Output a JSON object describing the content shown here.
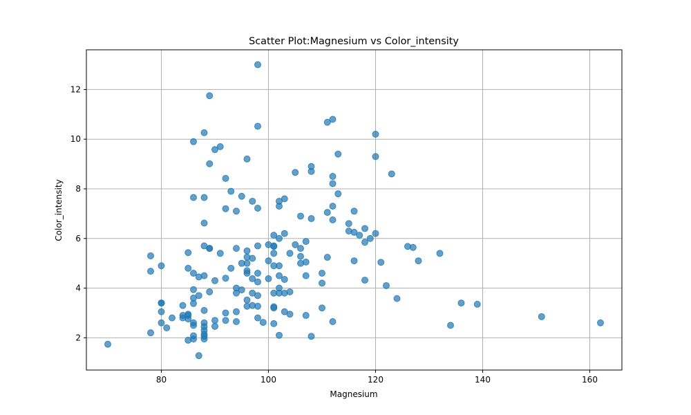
{
  "chart_data": {
    "type": "scatter",
    "title": "Scatter Plot:Magnesium vs Color_intensity",
    "xlabel": "Magnesium",
    "ylabel": "Color_intensity",
    "xlim": [
      66,
      166
    ],
    "ylim": [
      0.7,
      13.6
    ],
    "xticks": [
      80,
      100,
      120,
      140,
      160
    ],
    "yticks": [
      2,
      4,
      6,
      8,
      10,
      12
    ],
    "grid": true,
    "colors": {
      "marker": "#1f77b4",
      "grid": "#b0b0b0",
      "axis": "#000000"
    },
    "points": [
      [
        70,
        1.74
      ],
      [
        78,
        5.3
      ],
      [
        78,
        4.68
      ],
      [
        78,
        2.2
      ],
      [
        80,
        4.9
      ],
      [
        80,
        3.4
      ],
      [
        80,
        3.4
      ],
      [
        80,
        3.05
      ],
      [
        80,
        2.6
      ],
      [
        81,
        2.4
      ],
      [
        82,
        2.8
      ],
      [
        84,
        3.3
      ],
      [
        84,
        2.9
      ],
      [
        84,
        2.8
      ],
      [
        85,
        5.43
      ],
      [
        85,
        4.8
      ],
      [
        85,
        2.95
      ],
      [
        85,
        2.9
      ],
      [
        85,
        2.76
      ],
      [
        85,
        1.9
      ],
      [
        86,
        9.9
      ],
      [
        86,
        7.65
      ],
      [
        86,
        4.6
      ],
      [
        86,
        3.94
      ],
      [
        86,
        3.6
      ],
      [
        86,
        3.38
      ],
      [
        86,
        2.6
      ],
      [
        86,
        2.5
      ],
      [
        86,
        2.08
      ],
      [
        86,
        1.95
      ],
      [
        87,
        4.45
      ],
      [
        87,
        3.7
      ],
      [
        87,
        1.28
      ],
      [
        88,
        10.26
      ],
      [
        88,
        7.65
      ],
      [
        88,
        6.62
      ],
      [
        88,
        5.7
      ],
      [
        88,
        4.5
      ],
      [
        88,
        3.1
      ],
      [
        88,
        2.6
      ],
      [
        88,
        2.45
      ],
      [
        88,
        2.3
      ],
      [
        88,
        2.15
      ],
      [
        88,
        2.06
      ],
      [
        88,
        1.95
      ],
      [
        89,
        11.75
      ],
      [
        89,
        9.01
      ],
      [
        89,
        5.6
      ],
      [
        89,
        5.6
      ],
      [
        89,
        3.85
      ],
      [
        90,
        9.58
      ],
      [
        90,
        4.3
      ],
      [
        90,
        2.7
      ],
      [
        90,
        2.46
      ],
      [
        91,
        9.7
      ],
      [
        91,
        5.4
      ],
      [
        92,
        8.42
      ],
      [
        92,
        7.2
      ],
      [
        92,
        4.4
      ],
      [
        92,
        3.0
      ],
      [
        92,
        2.7
      ],
      [
        93,
        7.9
      ],
      [
        93,
        4.8
      ],
      [
        94,
        7.1
      ],
      [
        94,
        5.6
      ],
      [
        94,
        4.0
      ],
      [
        94,
        3.8
      ],
      [
        94,
        3.05
      ],
      [
        94,
        2.65
      ],
      [
        95,
        7.7
      ],
      [
        95,
        5.0
      ],
      [
        95,
        3.93
      ],
      [
        96,
        9.2
      ],
      [
        96,
        5.5
      ],
      [
        96,
        5.25
      ],
      [
        96,
        5.0
      ],
      [
        96,
        4.7
      ],
      [
        96,
        4.6
      ],
      [
        96,
        3.52
      ],
      [
        96,
        3.27
      ],
      [
        97,
        7.5
      ],
      [
        97,
        5.2
      ],
      [
        97,
        4.38
      ],
      [
        97,
        3.8
      ],
      [
        97,
        3.3
      ],
      [
        98,
        13.0
      ],
      [
        98,
        10.52
      ],
      [
        98,
        7.22
      ],
      [
        98,
        5.7
      ],
      [
        98,
        4.6
      ],
      [
        98,
        4.25
      ],
      [
        98,
        3.7
      ],
      [
        98,
        3.27
      ],
      [
        98,
        2.8
      ],
      [
        99,
        2.62
      ],
      [
        100,
        5.75
      ],
      [
        100,
        5.1
      ],
      [
        100,
        4.38
      ],
      [
        101,
        6.13
      ],
      [
        101,
        5.7
      ],
      [
        101,
        5.68
      ],
      [
        101,
        5.4
      ],
      [
        101,
        4.9
      ],
      [
        101,
        3.8
      ],
      [
        101,
        3.25
      ],
      [
        101,
        3.2
      ],
      [
        101,
        2.57
      ],
      [
        102,
        7.5
      ],
      [
        102,
        7.3
      ],
      [
        102,
        6.0
      ],
      [
        102,
        4.9
      ],
      [
        102,
        4.5
      ],
      [
        102,
        4.0
      ],
      [
        102,
        3.8
      ],
      [
        102,
        2.1
      ],
      [
        103,
        7.6
      ],
      [
        103,
        6.2
      ],
      [
        103,
        4.35
      ],
      [
        103,
        3.8
      ],
      [
        103,
        3.05
      ],
      [
        104,
        5.4
      ],
      [
        104,
        3.85
      ],
      [
        104,
        2.95
      ],
      [
        105,
        8.66
      ],
      [
        105,
        5.75
      ],
      [
        106,
        6.9
      ],
      [
        106,
        5.6
      ],
      [
        106,
        5.28
      ],
      [
        106,
        5.0
      ],
      [
        107,
        5.88
      ],
      [
        107,
        5.05
      ],
      [
        107,
        4.5
      ],
      [
        107,
        2.9
      ],
      [
        108,
        8.9
      ],
      [
        108,
        8.7
      ],
      [
        108,
        6.8
      ],
      [
        108,
        2.06
      ],
      [
        110,
        4.6
      ],
      [
        110,
        4.2
      ],
      [
        110,
        3.2
      ],
      [
        111,
        10.68
      ],
      [
        111,
        7.05
      ],
      [
        111,
        5.24
      ],
      [
        112,
        10.8
      ],
      [
        112,
        8.5
      ],
      [
        112,
        8.21
      ],
      [
        112,
        7.3
      ],
      [
        112,
        6.75
      ],
      [
        112,
        2.65
      ],
      [
        113,
        9.4
      ],
      [
        113,
        7.8
      ],
      [
        115,
        6.6
      ],
      [
        115,
        6.3
      ],
      [
        116,
        7.1
      ],
      [
        116,
        6.25
      ],
      [
        116,
        5.1
      ],
      [
        117,
        6.13
      ],
      [
        118,
        6.4
      ],
      [
        118,
        5.85
      ],
      [
        118,
        4.32
      ],
      [
        119,
        6.0
      ],
      [
        120,
        10.2
      ],
      [
        120,
        9.3
      ],
      [
        120,
        6.2
      ],
      [
        121,
        5.04
      ],
      [
        122,
        4.1
      ],
      [
        123,
        8.6
      ],
      [
        124,
        3.58
      ],
      [
        126,
        5.68
      ],
      [
        127,
        5.64
      ],
      [
        128,
        5.1
      ],
      [
        132,
        5.4
      ],
      [
        134,
        2.5
      ],
      [
        136,
        3.4
      ],
      [
        139,
        3.35
      ],
      [
        151,
        2.85
      ],
      [
        162,
        2.6
      ]
    ]
  }
}
